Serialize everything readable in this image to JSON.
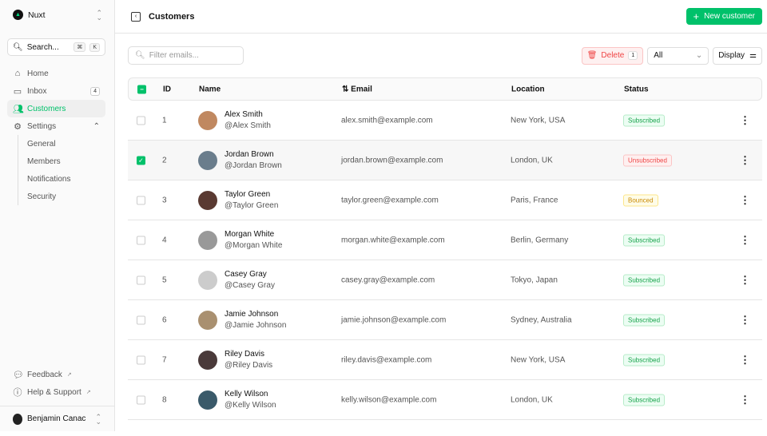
{
  "sidebar": {
    "team": "Nuxt",
    "search": "Search...",
    "kbd": [
      "⌘",
      "K"
    ],
    "items": [
      {
        "label": "Home",
        "icon": "home-icon"
      },
      {
        "label": "Inbox",
        "icon": "inbox-icon",
        "badge": "4"
      },
      {
        "label": "Customers",
        "icon": "users-icon"
      },
      {
        "label": "Settings",
        "icon": "gear-icon"
      }
    ],
    "settings_sub": [
      "General",
      "Members",
      "Notifications",
      "Security"
    ],
    "footer_links": [
      "Feedback",
      "Help & Support"
    ],
    "user": "Benjamin Canac"
  },
  "header": {
    "title": "Customers",
    "new_button": "New customer"
  },
  "toolbar": {
    "filter_placeholder": "Filter emails...",
    "delete": "Delete",
    "delete_count": "1",
    "status_filter": "All",
    "display": "Display"
  },
  "table": {
    "headers": [
      "ID",
      "Name",
      "Email",
      "Location",
      "Status"
    ],
    "rows": [
      {
        "id": "1",
        "name": "Alex Smith",
        "handle": "@Alex Smith",
        "email": "alex.smith@example.com",
        "location": "New York, USA",
        "status": "Subscribed",
        "selected": false
      },
      {
        "id": "2",
        "name": "Jordan Brown",
        "handle": "@Jordan Brown",
        "email": "jordan.brown@example.com",
        "location": "London, UK",
        "status": "Unsubscribed",
        "selected": true
      },
      {
        "id": "3",
        "name": "Taylor Green",
        "handle": "@Taylor Green",
        "email": "taylor.green@example.com",
        "location": "Paris, France",
        "status": "Bounced",
        "selected": false
      },
      {
        "id": "4",
        "name": "Morgan White",
        "handle": "@Morgan White",
        "email": "morgan.white@example.com",
        "location": "Berlin, Germany",
        "status": "Subscribed",
        "selected": false
      },
      {
        "id": "5",
        "name": "Casey Gray",
        "handle": "@Casey Gray",
        "email": "casey.gray@example.com",
        "location": "Tokyo, Japan",
        "status": "Subscribed",
        "selected": false
      },
      {
        "id": "6",
        "name": "Jamie Johnson",
        "handle": "@Jamie Johnson",
        "email": "jamie.johnson@example.com",
        "location": "Sydney, Australia",
        "status": "Subscribed",
        "selected": false
      },
      {
        "id": "7",
        "name": "Riley Davis",
        "handle": "@Riley Davis",
        "email": "riley.davis@example.com",
        "location": "New York, USA",
        "status": "Subscribed",
        "selected": false
      },
      {
        "id": "8",
        "name": "Kelly Wilson",
        "handle": "@Kelly Wilson",
        "email": "kelly.wilson@example.com",
        "location": "London, UK",
        "status": "Subscribed",
        "selected": false
      }
    ]
  },
  "colors": {
    "accent": "#00c16a",
    "danger": "#ef4444",
    "warning": "#eab308"
  }
}
